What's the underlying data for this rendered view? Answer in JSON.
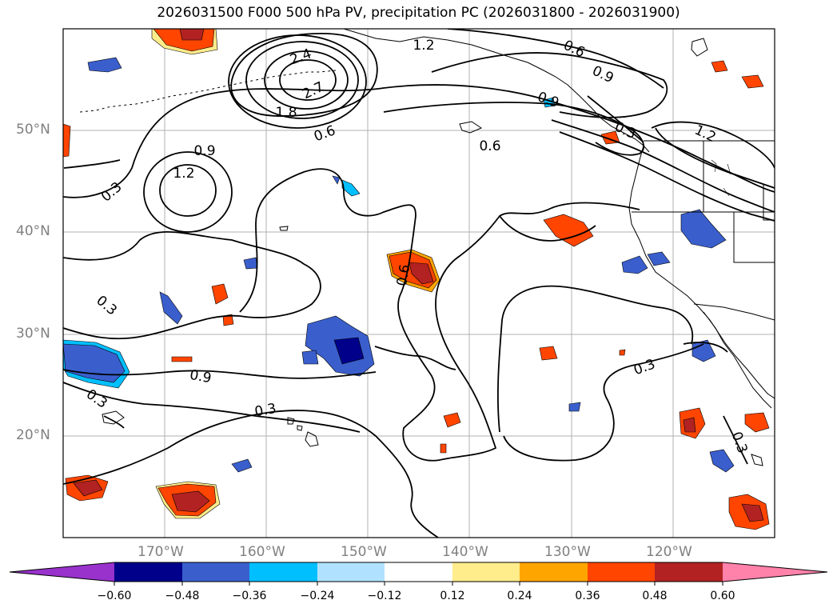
{
  "title": "2026031500 F000 500 hPa PV, precipitation PC (2026031800 - 2026031900)",
  "map": {
    "latitude_labels": [
      "50°N",
      "40°N",
      "30°N",
      "20°N"
    ],
    "longitude_labels": [
      "170°W",
      "160°W",
      "150°W",
      "140°W",
      "130°W",
      "120°W"
    ],
    "contour_labels": [
      "1.2",
      "0.6",
      "0.9",
      "2.4",
      "2.7",
      "1.8",
      "0.9",
      "0.6",
      "0.6",
      "0.9",
      "1.2",
      "0.3",
      "0.3",
      "0.9",
      "0.3",
      "0.3",
      "0.3",
      "0.6",
      "0.3",
      "1.2",
      "0.3"
    ]
  },
  "colorbar": {
    "ticks": [
      "−0.60",
      "−0.48",
      "−0.36",
      "−0.24",
      "−0.12",
      "0.12",
      "0.24",
      "0.36",
      "0.48",
      "0.60"
    ],
    "colors": {
      "under": "#9932cc",
      "n60": "#00008b",
      "n48": "#3a5fcd",
      "n36": "#00bfff",
      "n24": "#b0e2ff",
      "zero": "#ffffff",
      "p12": "#ffec8b",
      "p24": "#ffa500",
      "p36": "#ff4500",
      "p48": "#b22222",
      "over": "#ff82ab"
    }
  }
}
